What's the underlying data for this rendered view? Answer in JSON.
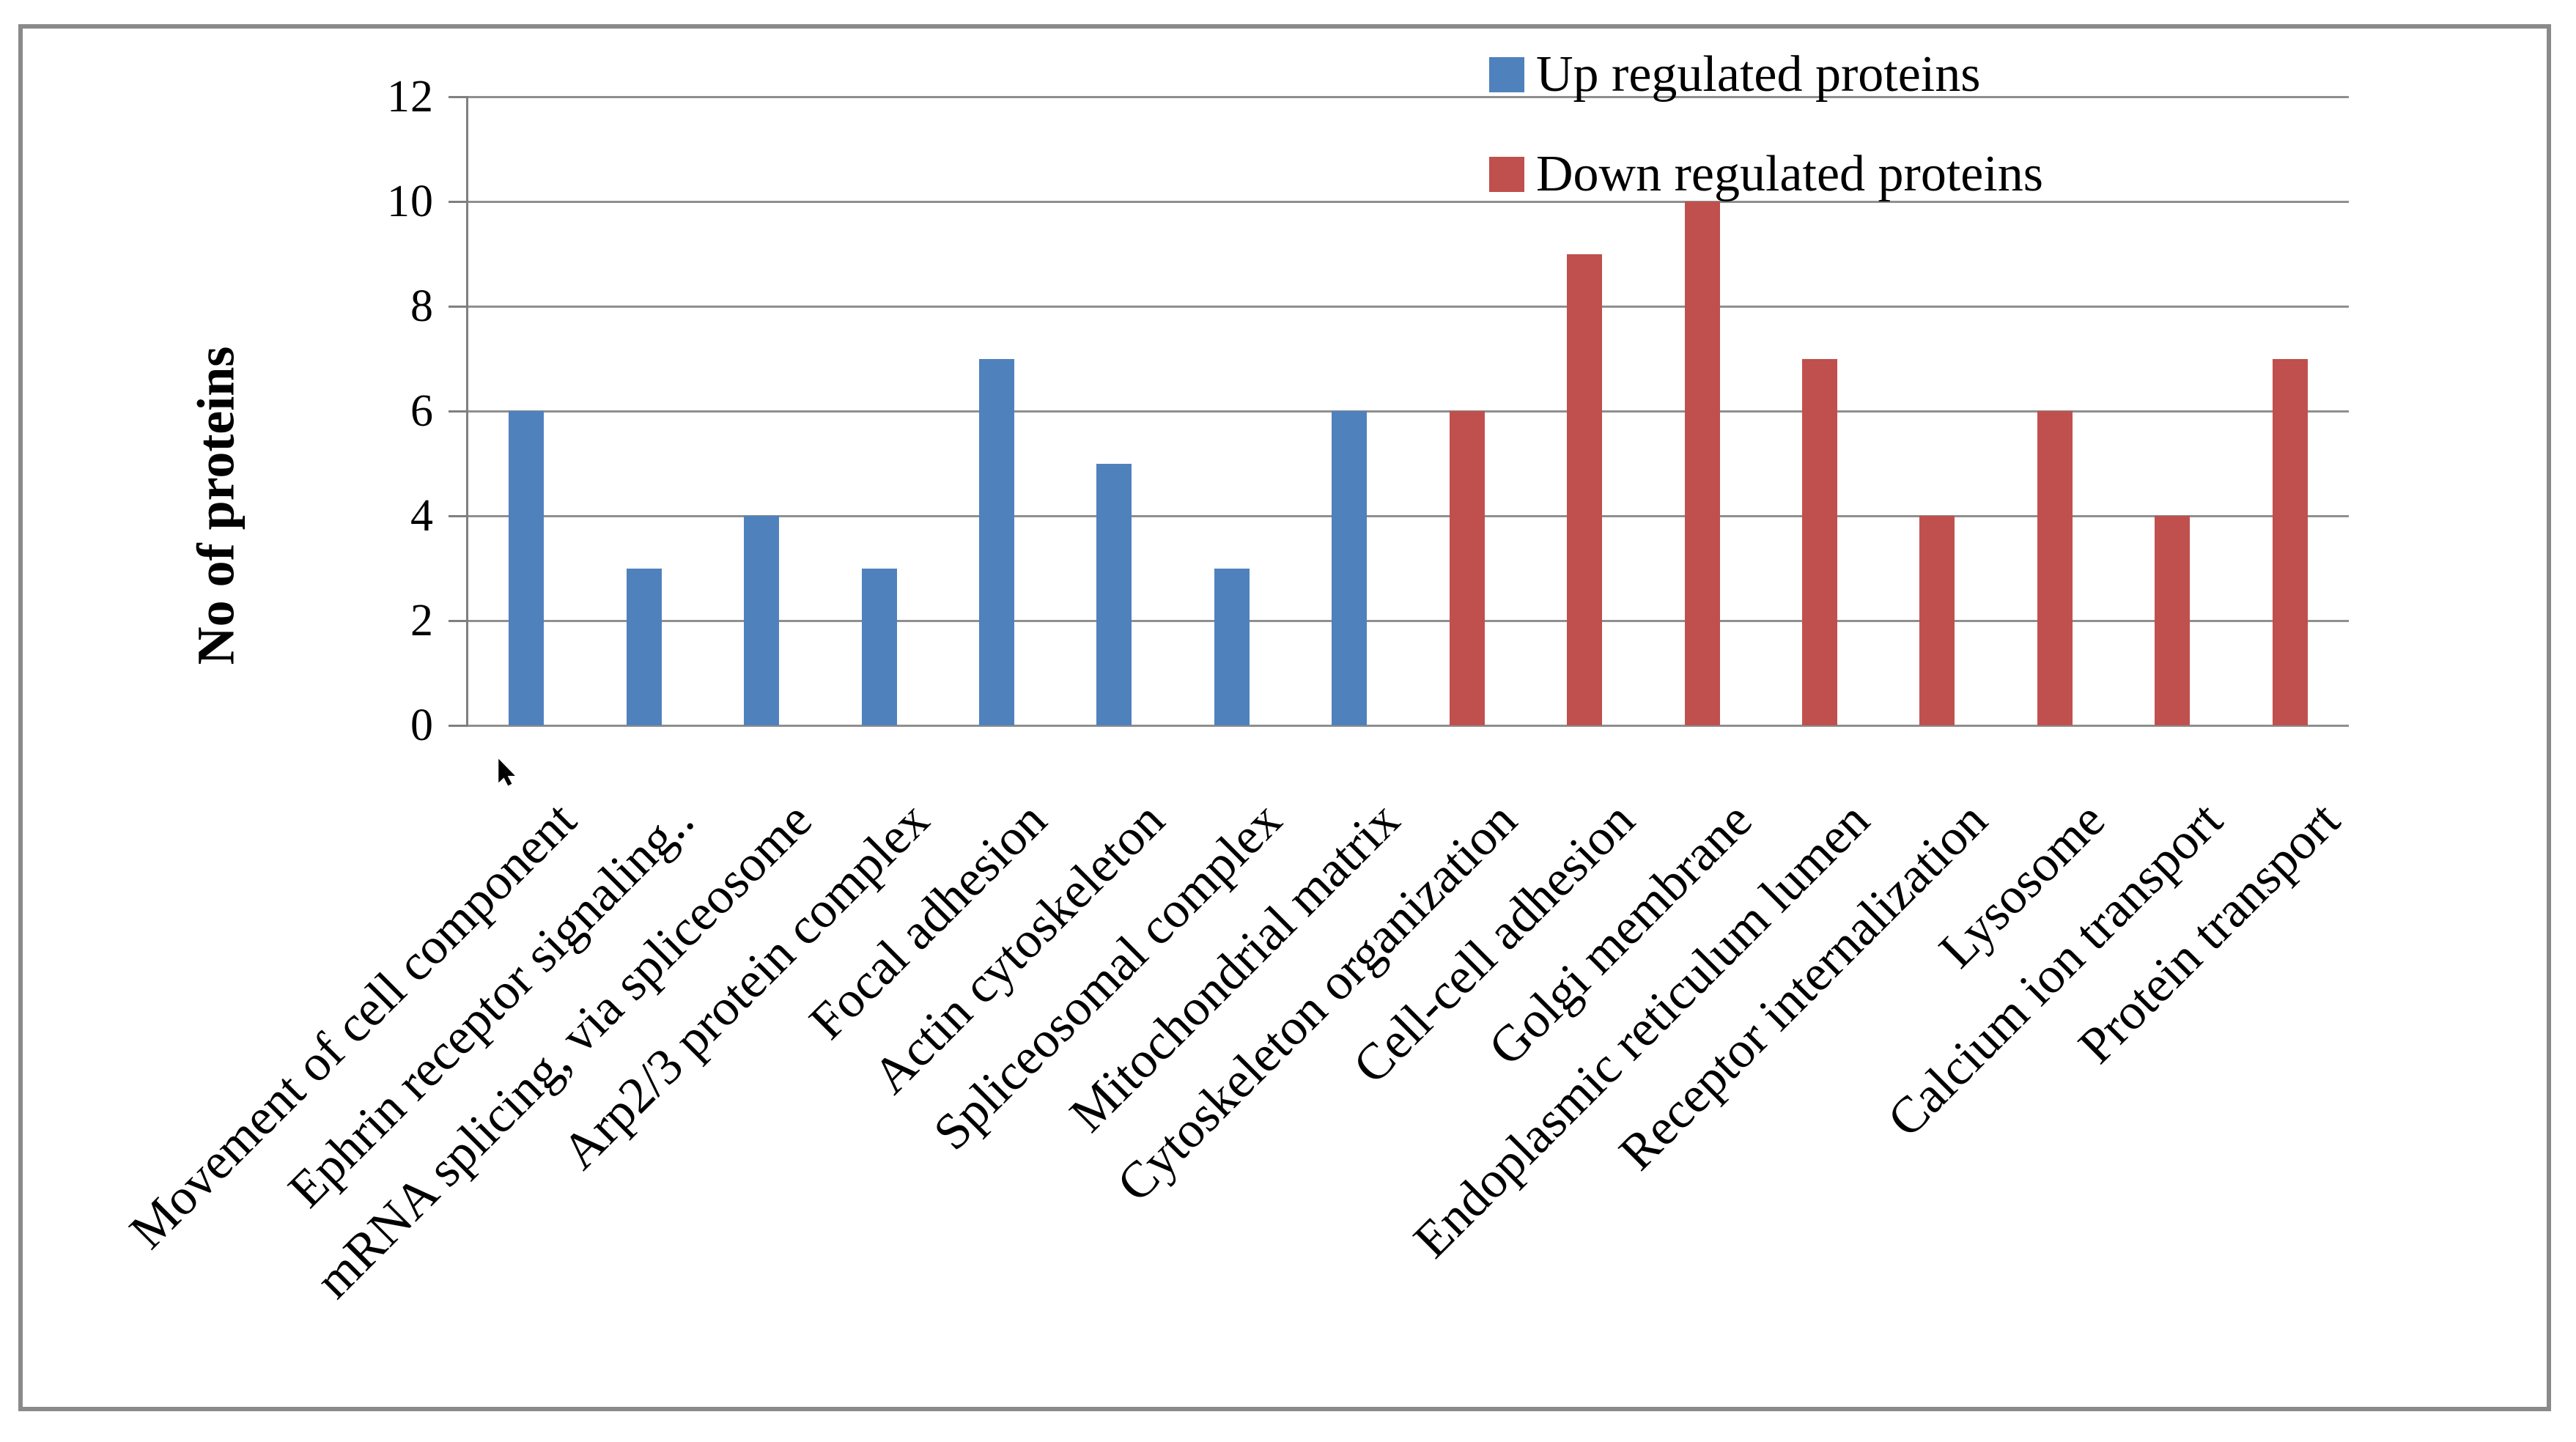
{
  "figure": {
    "background": "#ffffff",
    "border_color": "#8a8a8a",
    "axis_color": "#7f7f7f",
    "gridline_color": "#8f8f8f"
  },
  "icons": {
    "cursor": "mouse-cursor-icon"
  },
  "chart_data": {
    "type": "bar",
    "title": "",
    "xlabel": "",
    "ylabel": "No of proteins",
    "ylim": [
      0,
      12
    ],
    "yticks": [
      0,
      2,
      4,
      6,
      8,
      10,
      12
    ],
    "grid": true,
    "legend_position": "top-right",
    "categories": [
      "Movement of cell component",
      "Ephrin receptor signaling..",
      "mRNA splicing, via spliceosome",
      "Arp2/3 protein complex",
      "Focal adhesion",
      "Actin cytoskeleton",
      "Spliceosomal complex",
      "Mitochondrial matrix",
      "Cytoskeleton organization",
      "Cell-cell adhesion",
      "Golgi membrane",
      "Endoplasmic reticulum lumen",
      "Receptor internalization",
      "Lysosome",
      "Calcium ion transport",
      "Protein transport"
    ],
    "series": [
      {
        "name": "Up regulated proteins",
        "color": "#4F81BD",
        "values": [
          6,
          3,
          4,
          3,
          7,
          5,
          3,
          6,
          null,
          null,
          null,
          null,
          null,
          null,
          null,
          null
        ]
      },
      {
        "name": "Down regulated proteins",
        "color": "#C0504D",
        "values": [
          null,
          null,
          null,
          null,
          null,
          null,
          null,
          null,
          6,
          9,
          10,
          7,
          4,
          6,
          4,
          7
        ]
      }
    ]
  }
}
